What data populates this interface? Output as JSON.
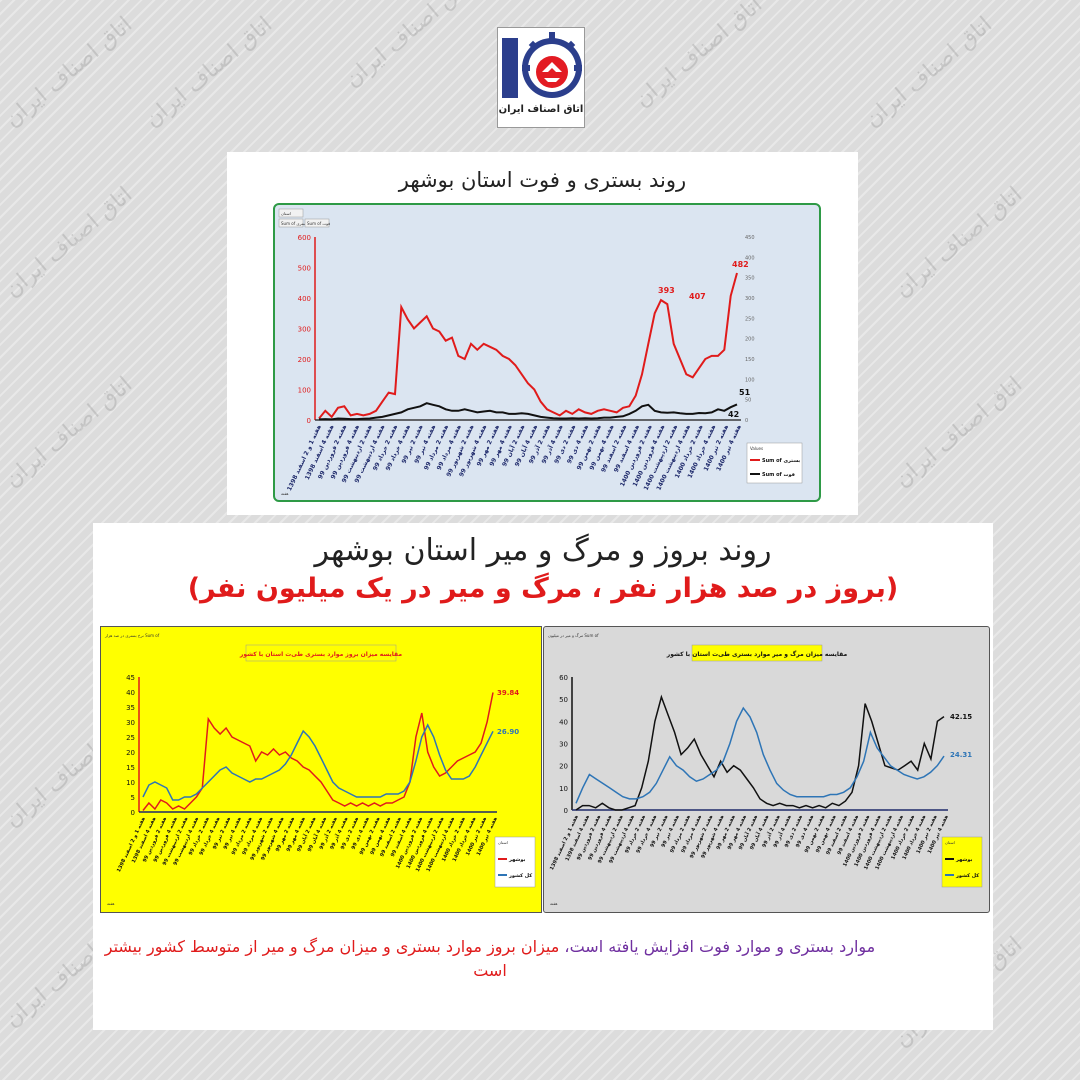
{
  "logo": {
    "text": "اتاق اصناف ایران"
  },
  "watermark": "اتاق اصناف ایران",
  "panel1": {
    "title": "روند بستری و فوت استان بوشهر",
    "chart_data": {
      "type": "line",
      "y_left_ticks": [
        "0",
        "100",
        "200",
        "300",
        "400",
        "500",
        "600"
      ],
      "y_right_ticks": [
        "0",
        "50",
        "100",
        "150",
        "200",
        "250",
        "300",
        "350",
        "400",
        "450"
      ],
      "ylim": [
        0,
        600
      ],
      "x_tick_labels": [
        "هفته 1 و 2 اسفند 1398",
        "هفته 4 اسفند 1398",
        "هفته 2 فروردین 99",
        "هفته 4 فروردین 99",
        "هفته 2 اردیبهشت 99",
        "هفته 4 اردیبهشت 99",
        "هفته 2 خرداد 99",
        "هفته 4 خرداد 99",
        "هفته 2 تیر 99",
        "هفته 4 تیر 99",
        "هفته 2 مرداد 99",
        "هفته 4 مرداد 99",
        "هفته 2 شهریور 99",
        "هفته 4 شهریور 99",
        "هفته 2 مهر 99",
        "هفته 4 مهر 99",
        "هفته 2 آبان 99",
        "هفته 4 آبان 99",
        "هفته 2 آذر 99",
        "هفته 4 آذر 99",
        "هفته 2 دی 99",
        "هفته 4 دی 99",
        "هفته 2 بهمن 99",
        "هفته 4 بهمن 99",
        "هفته 2 اسفند 99",
        "هفته 4 اسفند 99",
        "هفته 2 فروردین 1400",
        "هفته 4 فروردین 1400",
        "هفته 2 اردیبهشت 1400",
        "هفته 4 اردیبهشت 1400",
        "هفته 2 خرداد 1400",
        "هفته 4 خرداد 1400",
        "هفته 2 تیر 1400",
        "هفته 4 تیر 1400"
      ],
      "series": [
        {
          "name": "Sum of بستری",
          "color": "#e01b1b",
          "values": [
            5,
            30,
            10,
            40,
            45,
            15,
            20,
            15,
            20,
            30,
            60,
            90,
            85,
            370,
            330,
            300,
            320,
            340,
            300,
            290,
            260,
            270,
            210,
            200,
            250,
            230,
            250,
            240,
            230,
            210,
            200,
            180,
            150,
            120,
            100,
            60,
            35,
            25,
            15,
            30,
            20,
            35,
            25,
            20,
            30,
            35,
            30,
            25,
            40,
            45,
            80,
            150,
            250,
            350,
            393,
            380,
            250,
            200,
            150,
            140,
            170,
            200,
            210,
            210,
            230,
            407,
            482
          ]
        },
        {
          "name": "Sum of فوت",
          "color": "#111111",
          "values": [
            2,
            3,
            2,
            5,
            4,
            3,
            3,
            4,
            5,
            8,
            10,
            15,
            20,
            25,
            35,
            40,
            45,
            55,
            50,
            45,
            35,
            30,
            30,
            35,
            30,
            25,
            28,
            30,
            25,
            25,
            20,
            20,
            22,
            20,
            15,
            10,
            8,
            6,
            5,
            5,
            6,
            5,
            6,
            5,
            6,
            8,
            8,
            10,
            12,
            20,
            30,
            45,
            50,
            30,
            25,
            24,
            25,
            22,
            20,
            20,
            23,
            22,
            25,
            35,
            30,
            42,
            51
          ]
        }
      ],
      "data_labels": [
        "393",
        "407",
        "482",
        "51",
        "42"
      ],
      "legend_title": "Values",
      "legend": [
        "Sum of بستری",
        "Sum of فوت"
      ],
      "filter_labels": [
        "استان",
        "Sum of بستری",
        "Sum of فوت"
      ],
      "bottom_label": "هفته"
    }
  },
  "panel2": {
    "title": "روند بروز و مرگ و میر استان بوشهر",
    "subtitle": "(بروز در صد هزار نفر ، مرگ و میر در یک میلیون نفر)"
  },
  "chart2": {
    "title": "مقایسه میزان بروز موارد بستری طی‌ت استان با کشور",
    "header": "نرخ بستری در صد هزار Sum of",
    "chart_data": {
      "type": "line",
      "y_ticks": [
        "0",
        "5",
        "10",
        "15",
        "20",
        "25",
        "30",
        "35",
        "40",
        "45"
      ],
      "ylim": [
        0,
        45
      ],
      "series": [
        {
          "name": "بوشهر",
          "color": "#e01b1b",
          "values": [
            0.5,
            3,
            1,
            4,
            3,
            1,
            2,
            1,
            3,
            5,
            8,
            31,
            28,
            26,
            28,
            25,
            24,
            23,
            22,
            17,
            20,
            19,
            21,
            19,
            20,
            18,
            17,
            15,
            14,
            12,
            10,
            7,
            4,
            3,
            2,
            3,
            2,
            3,
            2,
            3,
            2,
            3,
            3,
            4,
            5,
            10,
            25,
            33,
            20,
            15,
            12,
            13,
            15,
            17,
            18,
            19,
            20,
            23,
            30,
            39.84
          ]
        },
        {
          "name": "کل کشور",
          "color": "#2e75b6",
          "values": [
            5,
            9,
            10,
            9,
            8,
            4,
            4,
            5,
            5,
            6,
            8,
            10,
            12,
            14,
            15,
            13,
            12,
            11,
            10,
            11,
            11,
            12,
            13,
            14,
            16,
            19,
            23,
            27,
            25,
            22,
            18,
            14,
            10,
            8,
            7,
            6,
            5,
            5,
            5,
            5,
            5,
            6,
            6,
            6,
            7,
            10,
            17,
            25,
            29,
            25,
            19,
            14,
            11,
            11,
            11,
            12,
            15,
            19,
            23,
            26.9
          ]
        }
      ],
      "data_labels": [
        "39.84",
        "26.90"
      ],
      "legend_title": "استان",
      "legend": [
        "بوشهر",
        "کل کشور"
      ],
      "bottom_label": "هفته"
    }
  },
  "chart3": {
    "title": "مقایسه میزان مرگ و میر موارد بستری طی‌ت استان با کشور",
    "header": "مرگ و میر در میلیون Sum of",
    "chart_data": {
      "type": "line",
      "y_ticks": [
        "0",
        "10",
        "20",
        "30",
        "40",
        "50",
        "60"
      ],
      "ylim": [
        0,
        60
      ],
      "series": [
        {
          "name": "بوشهر",
          "color": "#111111",
          "values": [
            0,
            2,
            2,
            1,
            3,
            1,
            0,
            0,
            1,
            2,
            10,
            22,
            40,
            51,
            43,
            35,
            25,
            28,
            32,
            25,
            20,
            15,
            22,
            17,
            20,
            18,
            14,
            10,
            5,
            3,
            2,
            3,
            2,
            2,
            1,
            2,
            1,
            2,
            1,
            3,
            2,
            4,
            8,
            20,
            48,
            40,
            30,
            20,
            19,
            18,
            20,
            22,
            18,
            30,
            23,
            40,
            42.15
          ]
        },
        {
          "name": "کل کشور",
          "color": "#2e75b6",
          "values": [
            3,
            10,
            16,
            14,
            12,
            10,
            8,
            6,
            5,
            5,
            6,
            8,
            12,
            18,
            24,
            20,
            18,
            15,
            13,
            14,
            16,
            18,
            22,
            30,
            40,
            46,
            42,
            35,
            25,
            18,
            12,
            9,
            7,
            6,
            6,
            6,
            6,
            6,
            7,
            7,
            8,
            10,
            15,
            22,
            35,
            28,
            24,
            20,
            18,
            16,
            15,
            14,
            15,
            17,
            20,
            24.31
          ]
        }
      ],
      "data_labels": [
        "42.15",
        "24.31"
      ],
      "legend_title": "استان",
      "legend": [
        "بوشهر",
        "کل کشور"
      ],
      "bottom_label": "هفته"
    }
  },
  "footer": {
    "part1": "موارد بستری و موارد فوت افزایش یافته است،",
    "part2": "میزان بروز موارد بستری و میزان مرگ و میر از متوسط کشور بیشتر است"
  }
}
